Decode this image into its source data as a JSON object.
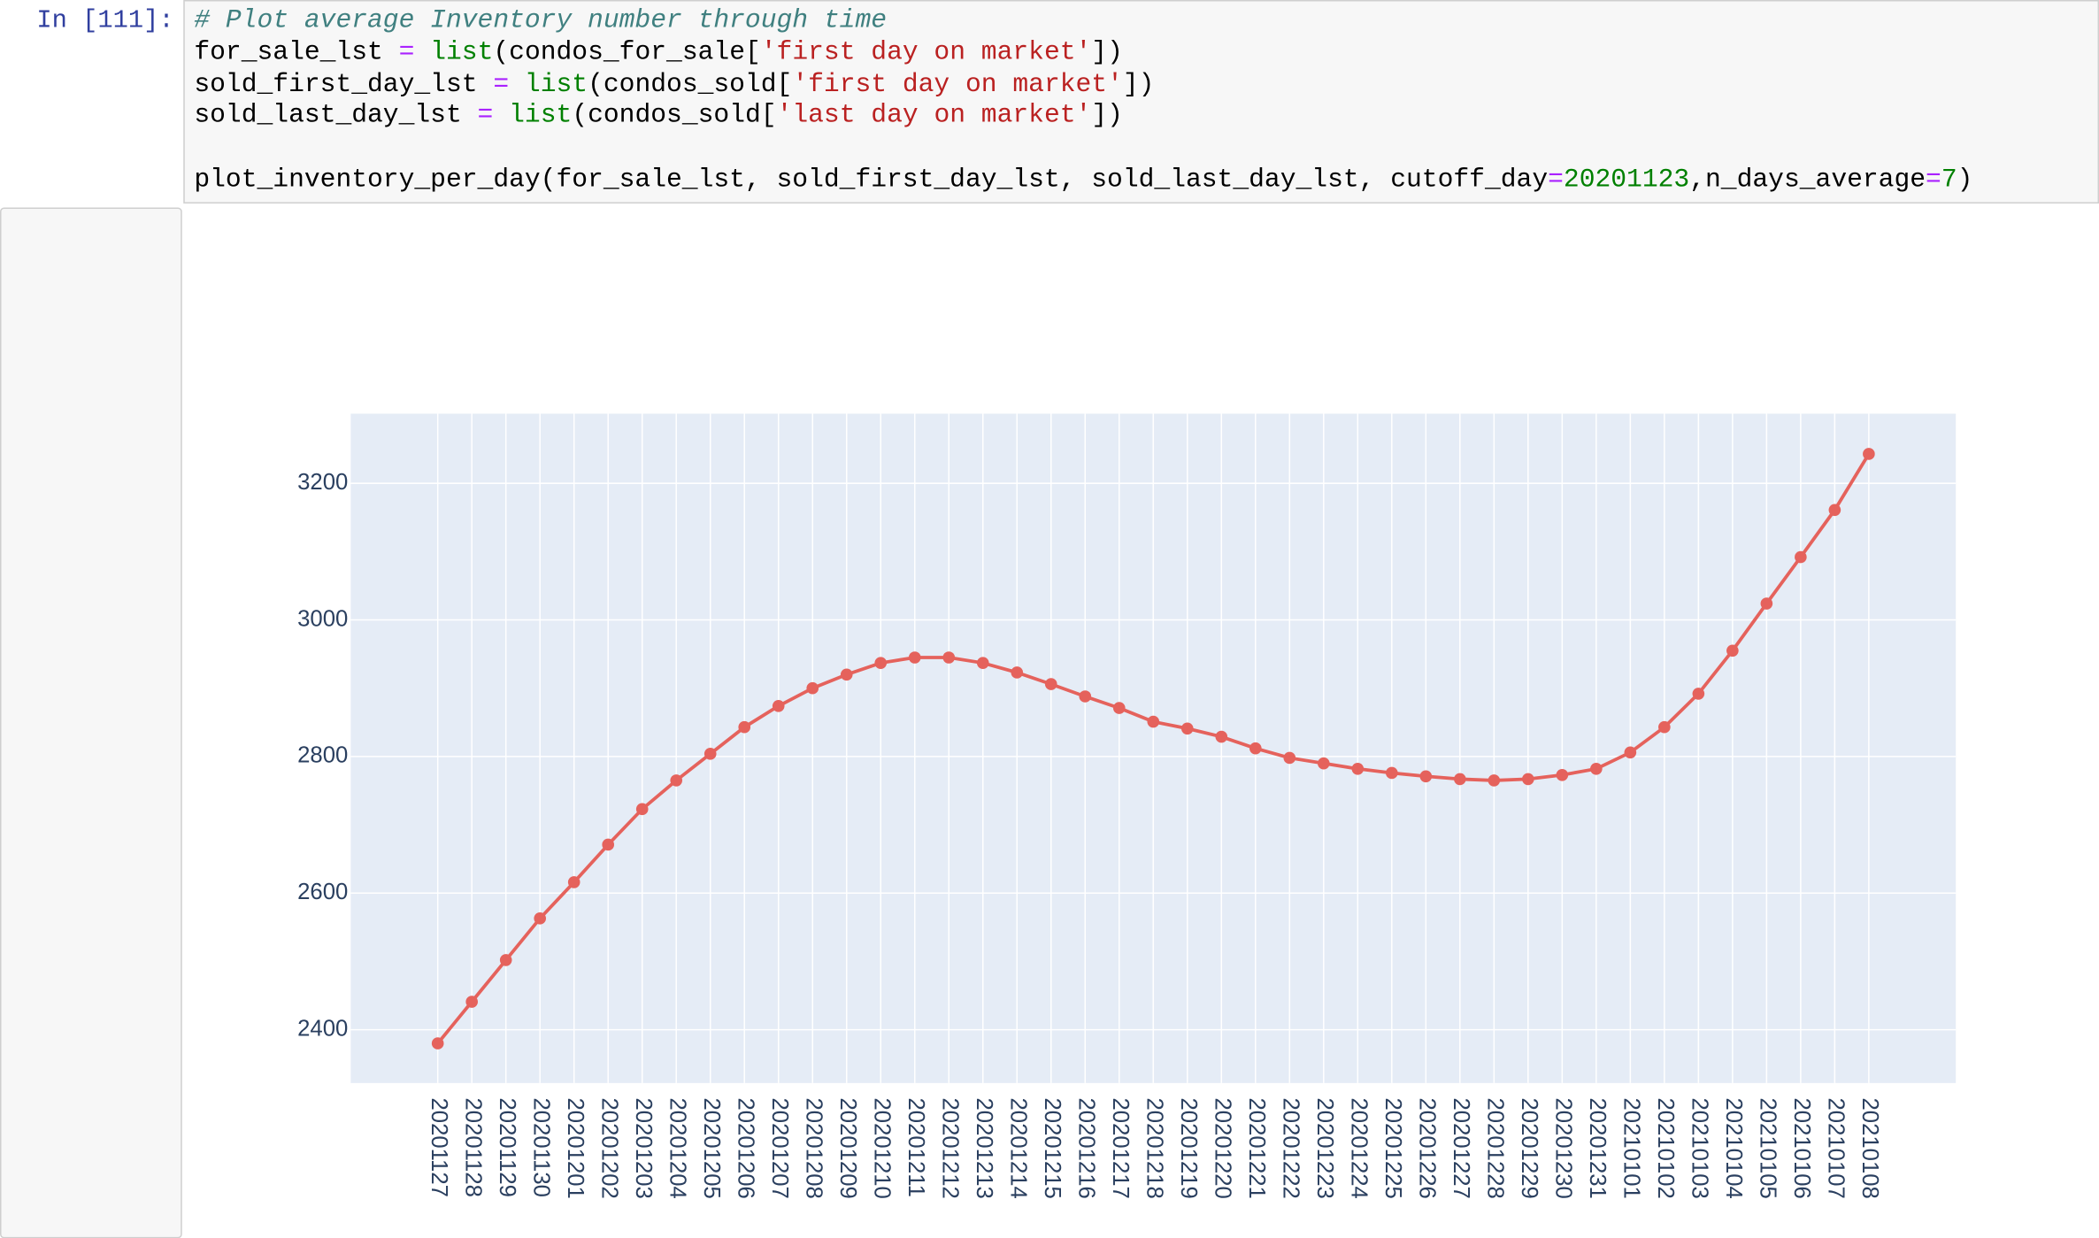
{
  "cell": {
    "prompt": "In [111]:",
    "code": [
      [
        "# Plot average Inventory number through time"
      ],
      [
        "for_sale_lst ",
        "=",
        " ",
        "list",
        "(condos_for_sale[",
        "'first day on market'",
        "])"
      ],
      [
        "sold_first_day_lst ",
        "=",
        " ",
        "list",
        "(condos_sold[",
        "'first day on market'",
        "])"
      ],
      [
        "sold_last_day_lst ",
        "=",
        " ",
        "list",
        "(condos_sold[",
        "'last day on market'",
        "])"
      ],
      [],
      [
        "plot_inventory_per_day(for_sale_lst, sold_first_day_lst, sold_last_day_lst, cutoff_day",
        "=",
        "20201123",
        ",n_days_average",
        "=",
        "7",
        ")"
      ]
    ]
  },
  "chart_data": {
    "type": "line",
    "color": "#e5625c",
    "grid": true,
    "categories": [
      "20201127",
      "20201128",
      "20201129",
      "20201130",
      "20201201",
      "20201202",
      "20201203",
      "20201204",
      "20201205",
      "20201206",
      "20201207",
      "20201208",
      "20201209",
      "20201210",
      "20201211",
      "20201212",
      "20201213",
      "20201214",
      "20201215",
      "20201216",
      "20201217",
      "20201218",
      "20201219",
      "20201220",
      "20201221",
      "20201222",
      "20201223",
      "20201224",
      "20201225",
      "20201226",
      "20201227",
      "20201228",
      "20201229",
      "20201230",
      "20201231",
      "20210101",
      "20210102",
      "20210103",
      "20210104",
      "20210105",
      "20210106",
      "20210107",
      "20210108"
    ],
    "values": [
      2380,
      2441,
      2502,
      2563,
      2616,
      2671,
      2723,
      2765,
      2804,
      2843,
      2874,
      2900,
      2920,
      2937,
      2945,
      2945,
      2937,
      2923,
      2906,
      2888,
      2871,
      2851,
      2841,
      2829,
      2812,
      2798,
      2790,
      2782,
      2776,
      2771,
      2767,
      2765,
      2767,
      2773,
      2782,
      2806,
      2843,
      2892,
      2955,
      3024,
      3092,
      3161,
      3243
    ],
    "ylim": [
      2322,
      3302
    ],
    "yticks": [
      2400,
      2600,
      2800,
      3000,
      3200
    ]
  }
}
